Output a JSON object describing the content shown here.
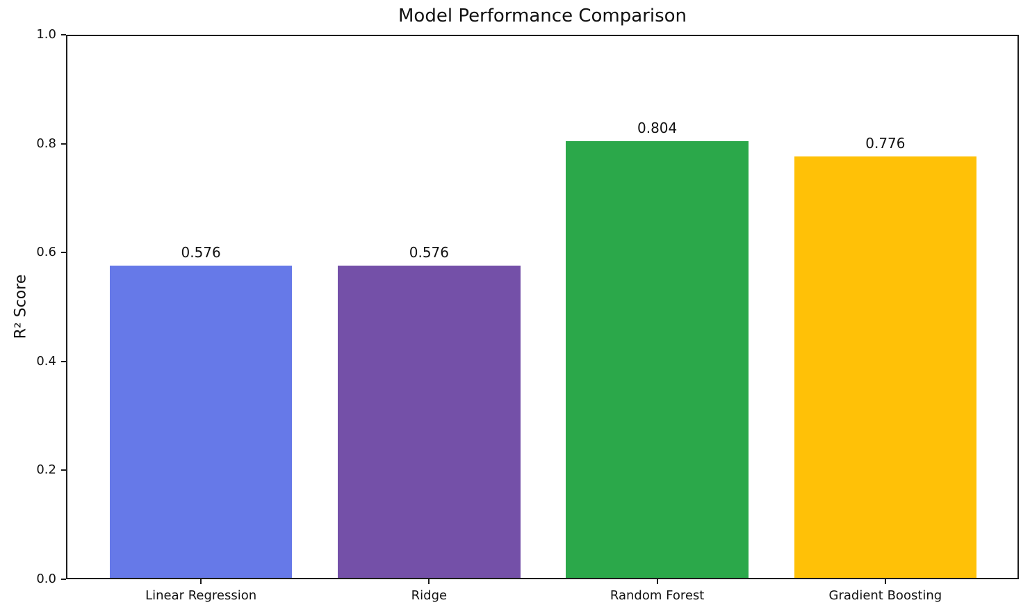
{
  "figure": {
    "background": "#ffffff",
    "text_color": "#111111",
    "axis_color": "#1c1c1c"
  },
  "chart_data": {
    "type": "bar",
    "title": "Model Performance Comparison",
    "xlabel": "",
    "ylabel": "R² Score",
    "categories": [
      "Linear Regression",
      "Ridge",
      "Random Forest",
      "Gradient Boosting"
    ],
    "values": [
      0.576,
      0.576,
      0.804,
      0.776
    ],
    "bar_value_labels": [
      "0.576",
      "0.576",
      "0.804",
      "0.776"
    ],
    "bar_colors": [
      "#6679E8",
      "#7450A8",
      "#2BA84A",
      "#FFC107"
    ],
    "ylim": [
      0.0,
      1.0
    ],
    "yticks": [
      0.0,
      0.2,
      0.4,
      0.6,
      0.8,
      1.0
    ],
    "ytick_labels": [
      "0.0",
      "0.2",
      "0.4",
      "0.6",
      "0.8",
      "1.0"
    ],
    "grid": false,
    "legend_position": "none"
  }
}
